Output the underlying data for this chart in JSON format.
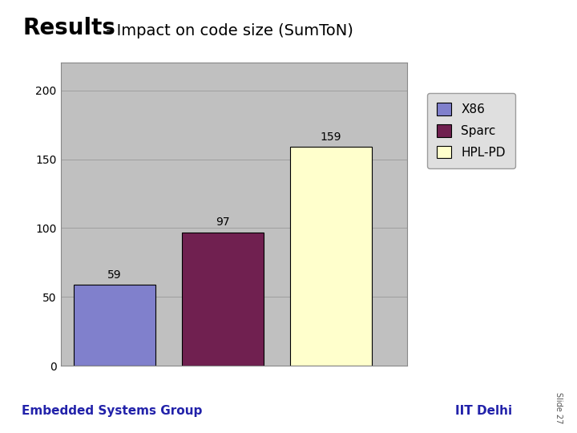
{
  "title_bold": "Results",
  "title_dash": " - ",
  "title_regular": "Impact on code size (SumToN)",
  "categories": [
    "X86",
    "Sparc",
    "HPL-PD"
  ],
  "values": [
    59,
    97,
    159
  ],
  "bar_colors": [
    "#8080cc",
    "#702050",
    "#ffffcc"
  ],
  "bar_edgecolors": [
    "#000000",
    "#000000",
    "#000000"
  ],
  "ylim": [
    0,
    220
  ],
  "yticks": [
    0,
    50,
    100,
    150,
    200
  ],
  "chart_area_color": "#c0c0c0",
  "outer_bg_color": "#ffffff",
  "legend_labels": [
    "X86",
    "Sparc",
    "HPL-PD"
  ],
  "legend_colors": [
    "#8080cc",
    "#702050",
    "#ffffcc"
  ],
  "footer_text_left": "Embedded Systems Group",
  "footer_text_right": "IIT Delhi",
  "footer_text_color": "#2222aa",
  "slide_text": "Slide 27",
  "separator_color": "#f0a000",
  "value_labels": [
    "59",
    "97",
    "159"
  ],
  "label_fontsize": 10,
  "axis_fontsize": 10,
  "title_bold_fontsize": 20,
  "title_regular_fontsize": 14
}
